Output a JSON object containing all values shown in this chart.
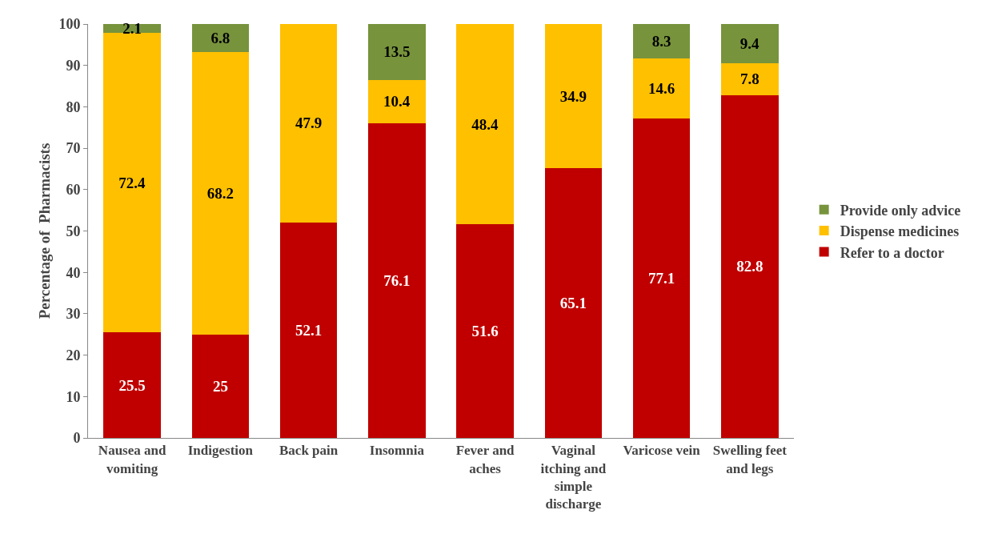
{
  "chart_data": {
    "type": "bar",
    "stacked": true,
    "ylabel": "Percentage of  Pharmacists",
    "categories": [
      "Nausea and vomiting",
      "Indigestion",
      "Back pain",
      "Insomnia",
      "Fever and aches",
      "Vaginal itching and simple discharge",
      "Varicose vein",
      "Swelling feet and legs"
    ],
    "series": [
      {
        "name": "Refer to a doctor",
        "color": "#c00000",
        "values": [
          25.5,
          25,
          52.1,
          76.1,
          51.6,
          65.1,
          77.1,
          82.8
        ]
      },
      {
        "name": "Dispense medicines",
        "color": "#ffc000",
        "values": [
          72.4,
          68.2,
          47.9,
          10.4,
          48.4,
          34.9,
          14.6,
          7.8
        ]
      },
      {
        "name": "Provide only advice",
        "color": "#77933c",
        "values": [
          2.1,
          6.8,
          null,
          13.5,
          null,
          null,
          8.3,
          9.4
        ]
      }
    ],
    "ylim": [
      0,
      100
    ],
    "yticks": [
      0,
      10,
      20,
      30,
      40,
      50,
      60,
      70,
      80,
      90,
      100
    ],
    "data_labels": true,
    "legend": "right",
    "grid": false
  }
}
